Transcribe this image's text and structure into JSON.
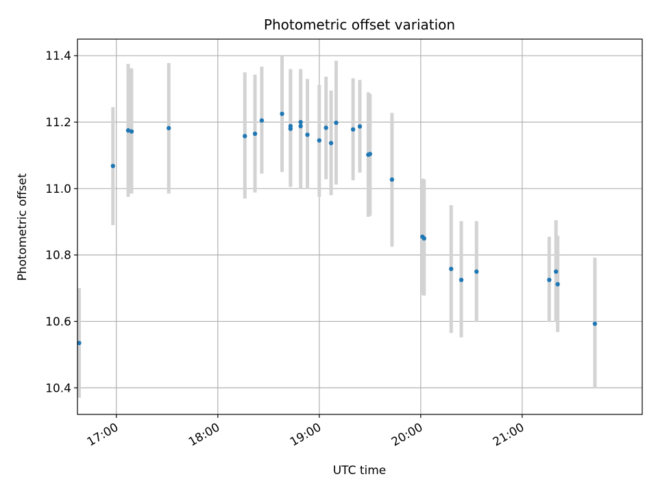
{
  "chart_data": {
    "type": "scatter",
    "title": "Photometric offset variation",
    "xlabel": "UTC time",
    "ylabel": "Photometric offset",
    "xlim": [
      "16:37",
      "22:11"
    ],
    "ylim": [
      10.32,
      11.45
    ],
    "x_ticks": [
      "17:00",
      "18:00",
      "19:00",
      "20:00",
      "21:00"
    ],
    "y_ticks": [
      "10.4",
      "10.6",
      "10.8",
      "11.0",
      "11.2",
      "11.4"
    ],
    "grid": true,
    "point_color": "#1f77b4",
    "errorbar_color": "#d3d3d3",
    "points": [
      {
        "x": "16:38",
        "y": 10.535,
        "lo": 10.37,
        "hi": 10.7
      },
      {
        "x": "16:58",
        "y": 11.068,
        "lo": 10.89,
        "hi": 11.245
      },
      {
        "x": "17:07",
        "y": 11.175,
        "lo": 10.975,
        "hi": 11.375
      },
      {
        "x": "17:09",
        "y": 11.172,
        "lo": 10.985,
        "hi": 11.362
      },
      {
        "x": "17:31",
        "y": 11.182,
        "lo": 10.985,
        "hi": 11.378
      },
      {
        "x": "18:16",
        "y": 11.158,
        "lo": 10.97,
        "hi": 11.35
      },
      {
        "x": "18:22",
        "y": 11.165,
        "lo": 10.988,
        "hi": 11.343
      },
      {
        "x": "18:26",
        "y": 11.205,
        "lo": 11.045,
        "hi": 11.367
      },
      {
        "x": "18:38",
        "y": 11.225,
        "lo": 11.05,
        "hi": 11.398
      },
      {
        "x": "18:43",
        "y": 11.18,
        "lo": 11.005,
        "hi": 11.36
      },
      {
        "x": "18:43",
        "y": 11.188,
        "lo": 11.01,
        "hi": 11.355
      },
      {
        "x": "18:49",
        "y": 11.188,
        "lo": 11.0,
        "hi": 11.355
      },
      {
        "x": "18:49",
        "y": 11.2,
        "lo": 11.02,
        "hi": 11.36
      },
      {
        "x": "18:53",
        "y": 11.162,
        "lo": 10.998,
        "hi": 11.33
      },
      {
        "x": "19:00",
        "y": 11.145,
        "lo": 10.975,
        "hi": 11.312
      },
      {
        "x": "19:04",
        "y": 11.183,
        "lo": 11.028,
        "hi": 11.337
      },
      {
        "x": "19:07",
        "y": 11.137,
        "lo": 10.98,
        "hi": 11.295
      },
      {
        "x": "19:10",
        "y": 11.198,
        "lo": 11.012,
        "hi": 11.385
      },
      {
        "x": "19:20",
        "y": 11.178,
        "lo": 11.025,
        "hi": 11.332
      },
      {
        "x": "19:24",
        "y": 11.187,
        "lo": 11.048,
        "hi": 11.327
      },
      {
        "x": "19:29",
        "y": 11.102,
        "lo": 10.915,
        "hi": 11.29
      },
      {
        "x": "19:30",
        "y": 11.104,
        "lo": 10.918,
        "hi": 11.285
      },
      {
        "x": "19:43",
        "y": 11.027,
        "lo": 10.825,
        "hi": 11.228
      },
      {
        "x": "20:01",
        "y": 10.855,
        "lo": 10.68,
        "hi": 11.03
      },
      {
        "x": "20:02",
        "y": 10.85,
        "lo": 10.678,
        "hi": 11.028
      },
      {
        "x": "20:18",
        "y": 10.758,
        "lo": 10.565,
        "hi": 10.95
      },
      {
        "x": "20:24",
        "y": 10.725,
        "lo": 10.552,
        "hi": 10.902
      },
      {
        "x": "20:33",
        "y": 10.75,
        "lo": 10.598,
        "hi": 10.902
      },
      {
        "x": "21:16",
        "y": 10.725,
        "lo": 10.598,
        "hi": 10.855
      },
      {
        "x": "21:20",
        "y": 10.75,
        "lo": 10.598,
        "hi": 10.905
      },
      {
        "x": "21:21",
        "y": 10.712,
        "lo": 10.568,
        "hi": 10.858
      },
      {
        "x": "21:43",
        "y": 10.593,
        "lo": 10.398,
        "hi": 10.792
      }
    ]
  }
}
